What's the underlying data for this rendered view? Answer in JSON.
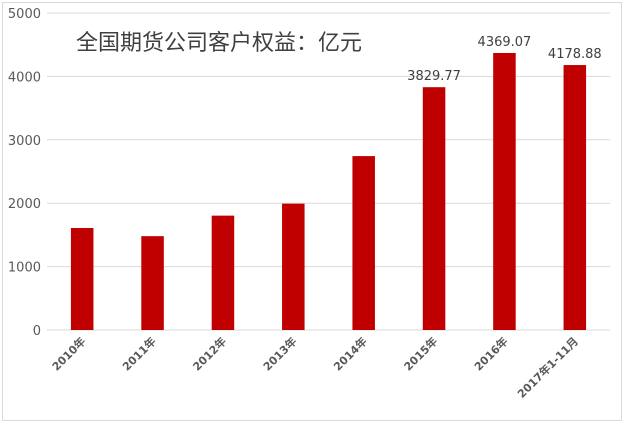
{
  "chart_data": {
    "type": "bar",
    "title": "全国期货公司客户权益：亿元",
    "categories": [
      "2010年",
      "2011年",
      "2012年",
      "2013年",
      "2014年",
      "2015年",
      "2016年",
      "2017年1-11月"
    ],
    "values": [
      1609,
      1480,
      1804,
      1993,
      2743,
      3829.77,
      4369.07,
      4178.88
    ],
    "data_labels": [
      "",
      "",
      "",
      "",
      "",
      "3829.77",
      "4369.07",
      "4178.88"
    ],
    "ylim": [
      0,
      5000
    ],
    "yticks": [
      "0",
      "1000",
      "2000",
      "3000",
      "4000",
      "5000"
    ],
    "xlabel": "",
    "ylabel": "",
    "grid": true,
    "bar_color": "#c00000",
    "grid_color": "#d9d9d9"
  }
}
